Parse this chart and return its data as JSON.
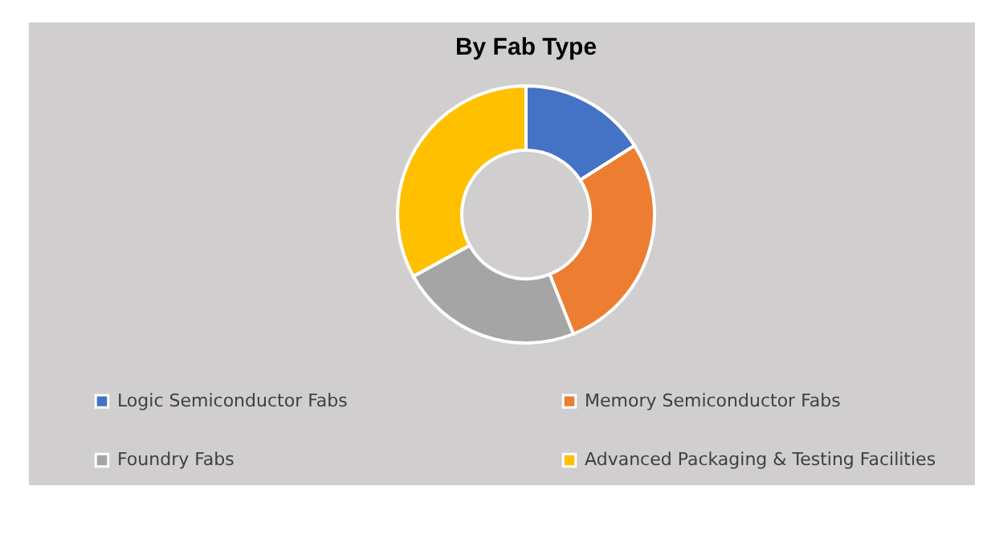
{
  "chart_data": {
    "type": "donut",
    "title": "By Fab Type",
    "categories": [
      "Logic Semiconductor Fabs",
      "Memory Semiconductor Fabs",
      "Foundry Fabs",
      "Advanced Packaging & Testing Facilities"
    ],
    "values": [
      16,
      28,
      23,
      33
    ],
    "colors": [
      "#4472c4",
      "#ed7d31",
      "#a5a5a5",
      "#ffc000"
    ],
    "legend": "bottom"
  }
}
